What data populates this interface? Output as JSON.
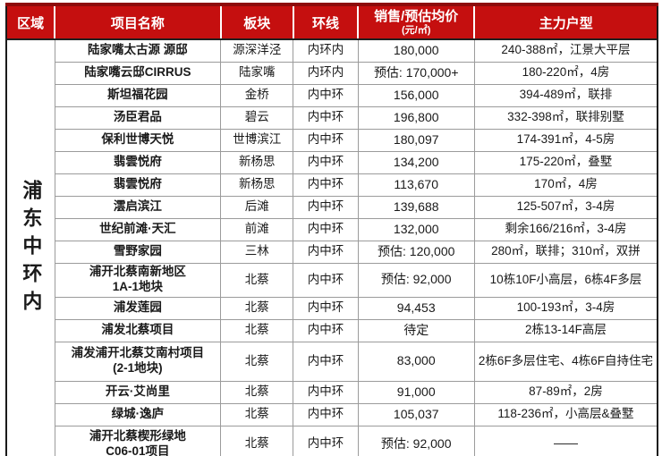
{
  "colors": {
    "header_bg": "#c50f0f",
    "header_top_strip": "#8e0b0b",
    "header_text": "#ffffff",
    "grid_line": "#9b9b9b",
    "outer_border": "#1a1a1a",
    "body_text": "#1a1a1a"
  },
  "table": {
    "region_label": "浦东中环内",
    "columns": [
      {
        "label": "区域"
      },
      {
        "label": "项目名称"
      },
      {
        "label": "板块"
      },
      {
        "label": "环线"
      },
      {
        "label": "销售/预估均价",
        "sub": "(元/㎡)"
      },
      {
        "label": "主力户型"
      }
    ],
    "rows": [
      {
        "name": "陆家嘴太古源 源邸",
        "district": "源深洋泾",
        "ring": "内环内",
        "price": "180,000",
        "units": "240-388㎡，江景大平层"
      },
      {
        "name": "陆家嘴云邸CIRRUS",
        "district": "陆家嘴",
        "ring": "内环内",
        "price": "预估: 170,000+",
        "units": "180-220㎡，4房"
      },
      {
        "name": "斯坦福花园",
        "district": "金桥",
        "ring": "内中环",
        "price": "156,000",
        "units": "394-489㎡，联排"
      },
      {
        "name": "汤臣君品",
        "district": "碧云",
        "ring": "内中环",
        "price": "196,800",
        "units": "332-398㎡，联排别墅"
      },
      {
        "name": "保利世博天悦",
        "district": "世博滨江",
        "ring": "内中环",
        "price": "180,097",
        "units": "174-391㎡，4-5房"
      },
      {
        "name": "翡雲悦府",
        "district": "新杨思",
        "ring": "内中环",
        "price": "134,200",
        "units": "175-220㎡，叠墅"
      },
      {
        "name": "翡雲悦府",
        "district": "新杨思",
        "ring": "内中环",
        "price": "113,670",
        "units": "170㎡，4房"
      },
      {
        "name": "澐启滨江",
        "district": "后滩",
        "ring": "内中环",
        "price": "139,688",
        "units": "125-507㎡，3-4房"
      },
      {
        "name": "世纪前滩·天汇",
        "district": "前滩",
        "ring": "内中环",
        "price": "132,000",
        "units": "剩余166/216㎡，3-4房"
      },
      {
        "name": "雪野家园",
        "district": "三林",
        "ring": "内中环",
        "price": "预估: 120,000",
        "units": "280㎡，联排；310㎡，双拼"
      },
      {
        "name": "浦开北蔡南新地区\n1A-1地块",
        "district": "北蔡",
        "ring": "内中环",
        "price": "预估: 92,000",
        "units": "10栋10F小高层，6栋4F多层"
      },
      {
        "name": "浦发莲园",
        "district": "北蔡",
        "ring": "内中环",
        "price": "94,453",
        "units": "100-193㎡，3-4房"
      },
      {
        "name": "浦发北蔡项目",
        "district": "北蔡",
        "ring": "内中环",
        "price": "待定",
        "units": "2栋13-14F高层"
      },
      {
        "name": "浦发浦开北蔡艾南村项目\n(2-1地块)",
        "district": "北蔡",
        "ring": "内中环",
        "price": "83,000",
        "units": "2栋6F多层住宅、4栋6F自持住宅"
      },
      {
        "name": "开云·艾尚里",
        "district": "北蔡",
        "ring": "内中环",
        "price": "91,000",
        "units": "87-89㎡，2房"
      },
      {
        "name": "绿城·逸庐",
        "district": "北蔡",
        "ring": "内中环",
        "price": "105,037",
        "units": "118-236㎡，小高层&叠墅"
      },
      {
        "name": "浦开北蔡楔形绿地\nC06-01项目",
        "district": "北蔡",
        "ring": "内中环",
        "price": "预估: 92,000",
        "units": "——"
      }
    ]
  }
}
